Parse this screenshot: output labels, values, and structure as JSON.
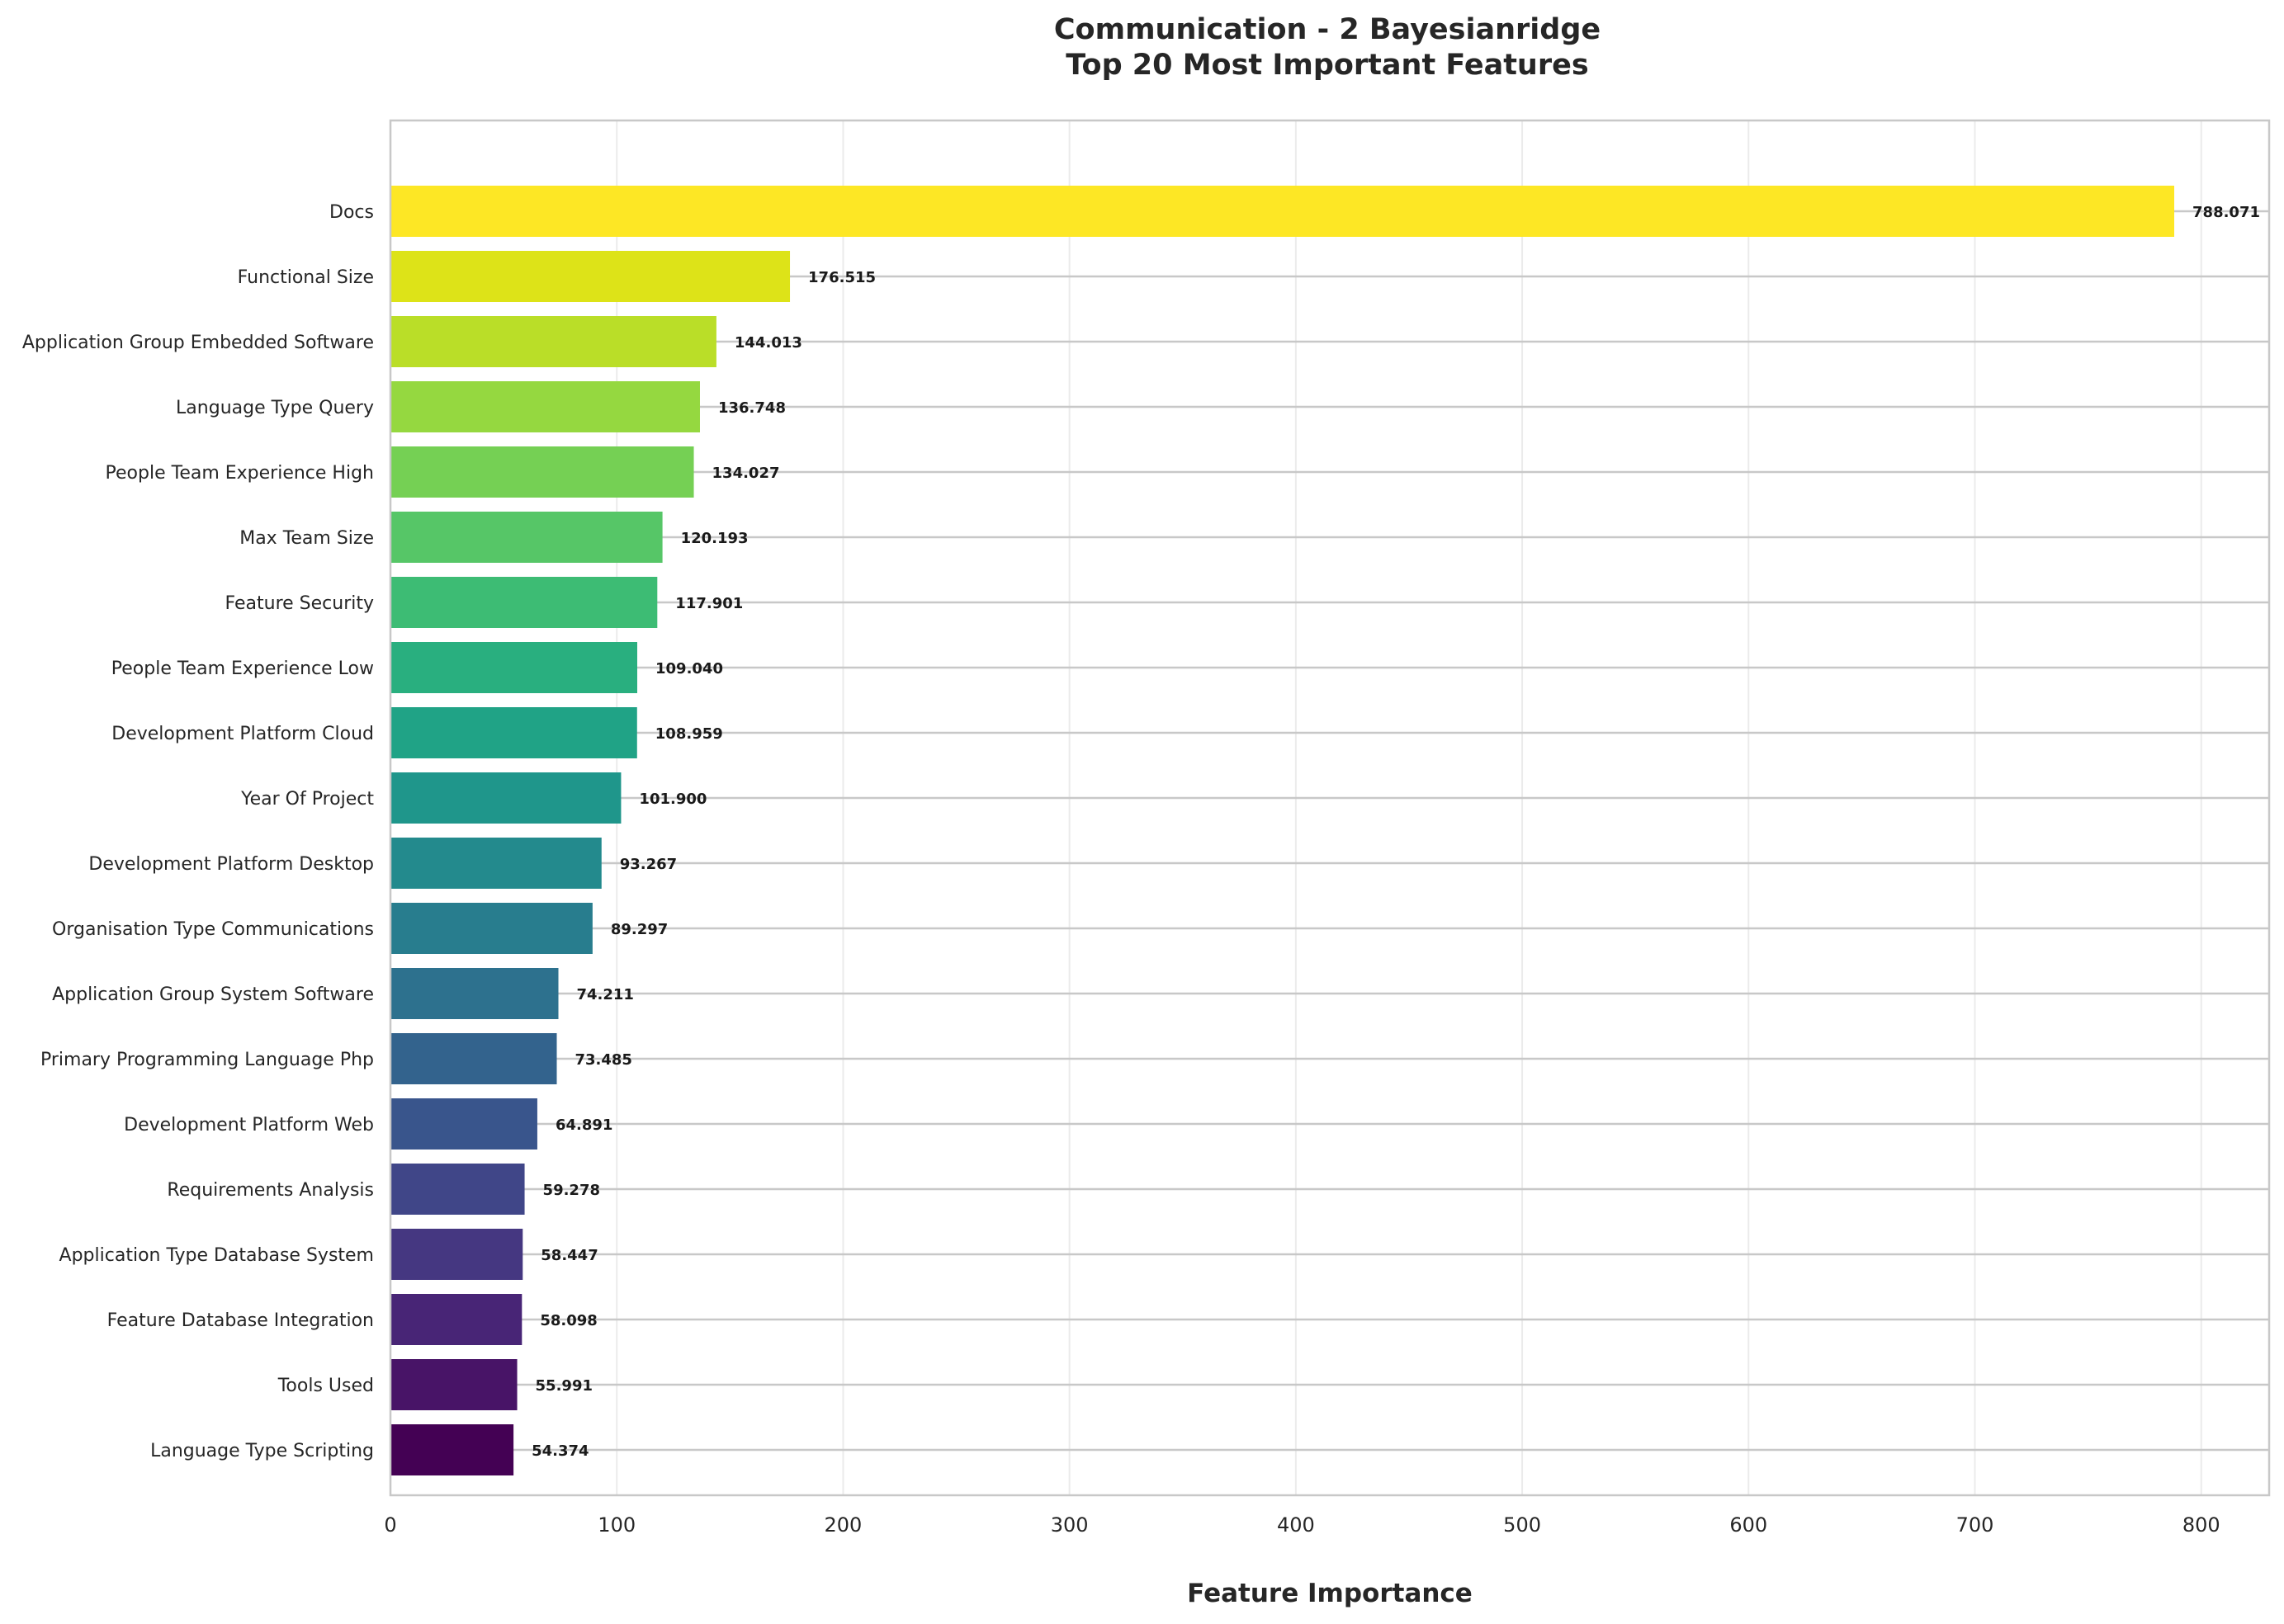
{
  "chart_data": {
    "type": "bar",
    "orientation": "horizontal",
    "title": "Communication - 2 Bayesianridge",
    "subtitle": "Top 20 Most Important Features",
    "xlabel": "Feature Importance",
    "ylabel": "",
    "xlim": [
      0,
      830
    ],
    "xticks": [
      0,
      100,
      200,
      300,
      400,
      500,
      600,
      700,
      800
    ],
    "grid": true,
    "colormap": "viridis",
    "categories": [
      "Docs",
      "Functional Size",
      "Application Group Embedded Software",
      "Language Type Query",
      "People Team Experience High",
      "Max Team Size",
      "Feature Security",
      "People Team Experience Low",
      "Development Platform Cloud",
      "Year Of Project",
      "Development Platform Desktop",
      "Organisation Type Communications",
      "Application Group System Software",
      "Primary Programming Language Php",
      "Development Platform Web",
      "Requirements Analysis",
      "Application Type Database System",
      "Feature Database Integration",
      "Tools Used",
      "Language Type Scripting"
    ],
    "values": [
      788.071,
      176.515,
      144.013,
      136.748,
      134.027,
      120.193,
      117.901,
      109.04,
      108.959,
      101.9,
      93.267,
      89.297,
      74.211,
      73.485,
      64.891,
      59.278,
      58.447,
      58.098,
      55.991,
      54.374
    ],
    "value_labels": [
      "788.071",
      "176.515",
      "144.013",
      "136.748",
      "134.027",
      "120.193",
      "117.901",
      "109.040",
      "108.959",
      "101.900",
      "93.267",
      "89.297",
      "74.211",
      "73.485",
      "64.891",
      "59.278",
      "58.447",
      "58.098",
      "55.991",
      "54.374"
    ],
    "colors": [
      "#fde725",
      "#dde318",
      "#bade28",
      "#95d840",
      "#75d054",
      "#56c667",
      "#3dbc74",
      "#29af7f",
      "#20a386",
      "#1f968b",
      "#238a8d",
      "#287d8e",
      "#2d718e",
      "#33638d",
      "#39558c",
      "#404688",
      "#453781",
      "#482576",
      "#481467",
      "#440154"
    ]
  }
}
